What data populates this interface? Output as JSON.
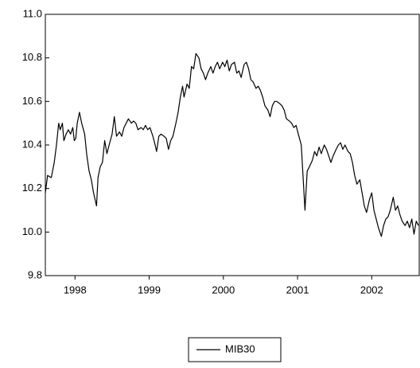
{
  "chart_data": {
    "type": "line",
    "x": [
      1998.1,
      1998.13,
      1998.18,
      1998.22,
      1998.25,
      1998.28,
      1998.3,
      1998.33,
      1998.35,
      1998.38,
      1998.41,
      1998.44,
      1998.47,
      1998.49,
      1998.51,
      1998.53,
      1998.56,
      1998.59,
      1998.63,
      1998.66,
      1998.69,
      1998.72,
      1998.75,
      1998.79,
      1998.81,
      1998.84,
      1998.87,
      1998.9,
      1998.93,
      1998.96,
      1999.0,
      1999.03,
      1999.06,
      1999.1,
      1999.13,
      1999.16,
      1999.19,
      1999.22,
      1999.26,
      1999.29,
      1999.32,
      1999.35,
      1999.39,
      1999.42,
      1999.45,
      1999.48,
      1999.51,
      1999.55,
      1999.58,
      1999.6,
      1999.63,
      1999.66,
      1999.7,
      1999.73,
      1999.76,
      1999.79,
      1999.82,
      1999.86,
      1999.89,
      1999.92,
      1999.95,
      1999.97,
      2000.01,
      2000.04,
      2000.07,
      2000.1,
      2000.13,
      2000.17,
      2000.2,
      2000.23,
      2000.26,
      2000.29,
      2000.33,
      2000.36,
      2000.39,
      2000.42,
      2000.45,
      2000.49,
      2000.52,
      2000.55,
      2000.58,
      2000.61,
      2000.65,
      2000.68,
      2000.71,
      2000.74,
      2000.78,
      2000.81,
      2000.84,
      2000.87,
      2000.9,
      2000.94,
      2000.97,
      2001.0,
      2001.03,
      2001.06,
      2001.1,
      2001.13,
      2001.16,
      2001.19,
      2001.22,
      2001.26,
      2001.29,
      2001.32,
      2001.35,
      2001.39,
      2001.42,
      2001.45,
      2001.48,
      2001.51,
      2001.55,
      2001.57,
      2001.6,
      2001.63,
      2001.66,
      2001.7,
      2001.73,
      2001.76,
      2001.79,
      2001.82,
      2001.86,
      2001.89,
      2001.92,
      2001.95,
      2001.98,
      2002.02,
      2002.05,
      2002.08,
      2002.11,
      2002.14,
      2002.18,
      2002.21,
      2002.24,
      2002.27,
      2002.3,
      2002.34,
      2002.37,
      2002.4,
      2002.43,
      2002.47,
      2002.5,
      2002.53,
      2002.56,
      2002.59,
      2002.63,
      2002.66,
      2002.69,
      2002.72,
      2002.75,
      2002.79,
      2002.82,
      2002.85,
      2002.88,
      2002.91,
      2002.95,
      2002.98,
      2003.01,
      2003.04,
      2003.07,
      2003.1,
      2003.13
    ],
    "series": [
      {
        "name": "MIB30",
        "color": "#000000",
        "values": [
          10.18,
          10.26,
          10.25,
          10.32,
          10.4,
          10.5,
          10.47,
          10.5,
          10.42,
          10.45,
          10.47,
          10.45,
          10.48,
          10.42,
          10.43,
          10.5,
          10.55,
          10.5,
          10.45,
          10.35,
          10.28,
          10.24,
          10.18,
          10.12,
          10.25,
          10.3,
          10.32,
          10.42,
          10.36,
          10.4,
          10.45,
          10.53,
          10.44,
          10.46,
          10.44,
          10.48,
          10.5,
          10.52,
          10.5,
          10.51,
          10.5,
          10.47,
          10.48,
          10.47,
          10.49,
          10.47,
          10.48,
          10.44,
          10.4,
          10.37,
          10.44,
          10.45,
          10.44,
          10.43,
          10.38,
          10.42,
          10.44,
          10.5,
          10.55,
          10.62,
          10.67,
          10.62,
          10.68,
          10.66,
          10.76,
          10.75,
          10.82,
          10.8,
          10.75,
          10.73,
          10.7,
          10.73,
          10.76,
          10.73,
          10.76,
          10.78,
          10.75,
          10.78,
          10.76,
          10.79,
          10.74,
          10.77,
          10.78,
          10.73,
          10.74,
          10.71,
          10.77,
          10.78,
          10.75,
          10.7,
          10.69,
          10.66,
          10.67,
          10.65,
          10.62,
          10.58,
          10.56,
          10.53,
          10.58,
          10.6,
          10.6,
          10.59,
          10.58,
          10.56,
          10.52,
          10.51,
          10.5,
          10.48,
          10.49,
          10.45,
          10.4,
          10.28,
          10.1,
          10.28,
          10.3,
          10.33,
          10.37,
          10.35,
          10.39,
          10.36,
          10.4,
          10.38,
          10.35,
          10.32,
          10.35,
          10.38,
          10.4,
          10.41,
          10.38,
          10.4,
          10.37,
          10.36,
          10.32,
          10.26,
          10.22,
          10.24,
          10.18,
          10.12,
          10.09,
          10.15,
          10.18,
          10.1,
          10.06,
          10.02,
          9.98,
          10.03,
          10.06,
          10.07,
          10.1,
          10.16,
          10.1,
          10.12,
          10.08,
          10.05,
          10.03,
          10.05,
          10.02,
          10.06,
          9.99,
          10.05,
          10.03
        ]
      }
    ],
    "xlim": [
      1998.1,
      2003.14
    ],
    "xticks": [
      {
        "value": 1998.5,
        "label": "1998"
      },
      {
        "value": 1999.5,
        "label": "1999"
      },
      {
        "value": 2000.5,
        "label": "2000"
      },
      {
        "value": 2001.5,
        "label": "2001"
      },
      {
        "value": 2002.5,
        "label": "2002"
      }
    ],
    "ylim": [
      9.8,
      11.0
    ],
    "yticks": [
      9.8,
      {
        "value": 10.0,
        "label": "10.0"
      },
      10.2,
      10.4,
      10.6,
      10.8,
      {
        "value": 11.0,
        "label": "11.0"
      }
    ],
    "grid": false,
    "legend": "bottom"
  }
}
